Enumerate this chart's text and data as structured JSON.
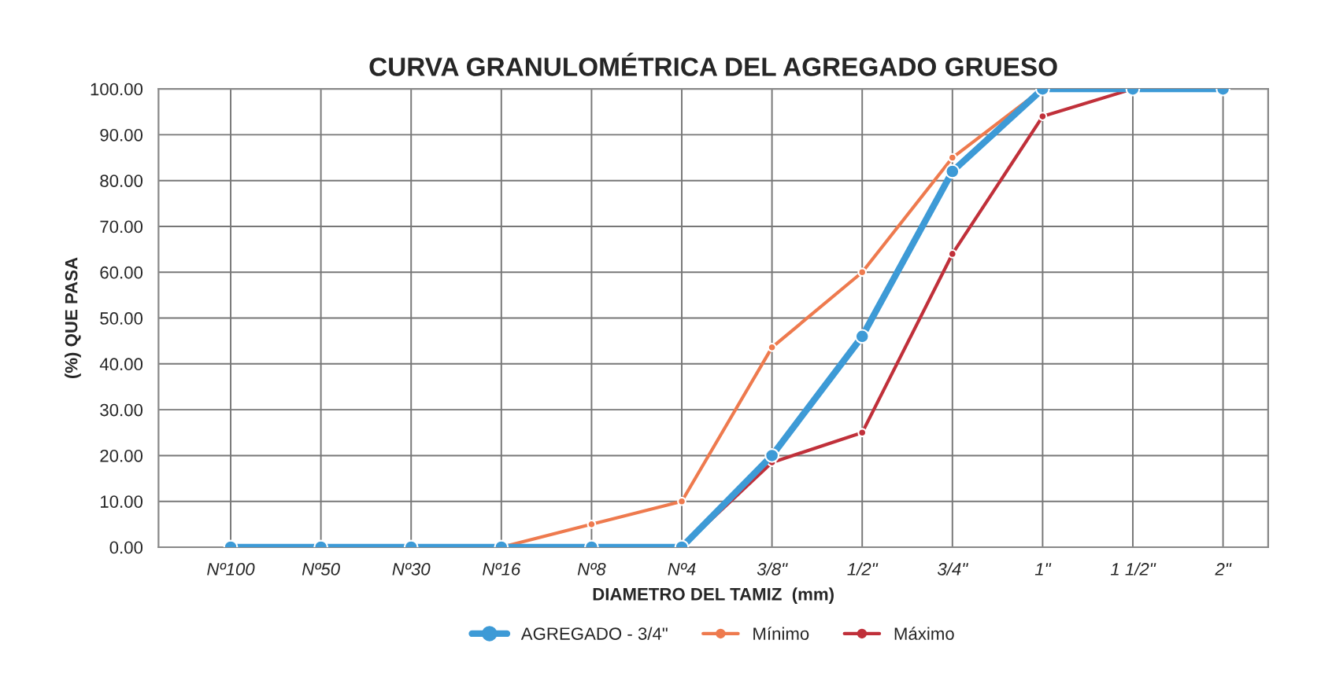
{
  "chart_data": {
    "type": "line",
    "title": "CURVA GRANULOMÉTRICA DEL AGREGADO GRUESO",
    "xlabel": "DIAMETRO DEL TAMIZ  (mm)",
    "ylabel": "(%) QUE PASA",
    "grid": true,
    "legend": "bottom",
    "marker": "circle",
    "line_style": "solid",
    "ylim": [
      0,
      100
    ],
    "categories": [
      "Nº100",
      "Nº50",
      "Nº30",
      "Nº16",
      "Nº8",
      "Nº4",
      "3/8\"",
      "1/2\"",
      "3/4\"",
      "1\"",
      "1 1/2\"",
      "2\""
    ],
    "yticks": [
      {
        "value": 0,
        "label": "0.00"
      },
      {
        "value": 10,
        "label": "10.00"
      },
      {
        "value": 20,
        "label": "20.00"
      },
      {
        "value": 30,
        "label": "30.00"
      },
      {
        "value": 40,
        "label": "40.00"
      },
      {
        "value": 50,
        "label": "50.00"
      },
      {
        "value": 60,
        "label": "60.00"
      },
      {
        "value": 70,
        "label": "70.00"
      },
      {
        "value": 80,
        "label": "80.00"
      },
      {
        "value": 90,
        "label": "90.00"
      },
      {
        "value": 100,
        "label": "100.00"
      }
    ],
    "series": [
      {
        "name": "AGREGADO - 3/4\"",
        "color": "#3d9ad6",
        "values": [
          0,
          0,
          0,
          0,
          0,
          0,
          20,
          46,
          82,
          100,
          100,
          100
        ]
      },
      {
        "name": "Mínimo",
        "color": "#ee7a4e",
        "values": [
          null,
          null,
          null,
          0,
          5,
          10,
          43.6,
          60,
          85,
          100,
          100,
          100
        ]
      },
      {
        "name": "Máximo",
        "color": "#c0303a",
        "values": [
          null,
          null,
          null,
          null,
          null,
          0,
          18.5,
          25,
          64,
          94,
          100,
          100
        ]
      }
    ]
  }
}
